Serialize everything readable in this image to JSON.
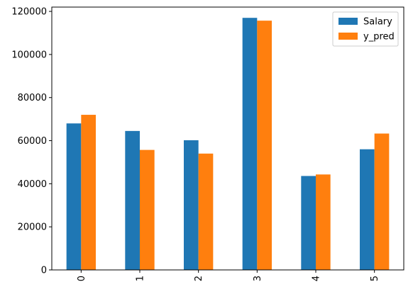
{
  "chart_data": {
    "type": "bar",
    "title": "",
    "xlabel": "",
    "ylabel": "",
    "categories": [
      "0",
      "1",
      "2",
      "3",
      "4",
      "5"
    ],
    "series": [
      {
        "name": "Salary",
        "color": "#1f77b4",
        "values": [
          68000,
          64500,
          60200,
          117000,
          43600,
          56000
        ]
      },
      {
        "name": "y_pred",
        "color": "#ff7f0e",
        "values": [
          72000,
          55700,
          54000,
          115700,
          44300,
          63300
        ]
      }
    ],
    "ylim": [
      0,
      122000
    ],
    "yticks": [
      {
        "value": 0,
        "label": "0"
      },
      {
        "value": 20000,
        "label": "20000"
      },
      {
        "value": 40000,
        "label": "40000"
      },
      {
        "value": 60000,
        "label": "60000"
      },
      {
        "value": 80000,
        "label": "80000"
      },
      {
        "value": 100000,
        "label": "100000"
      },
      {
        "value": 120000,
        "label": "120000"
      }
    ],
    "xtick_rotation": "vertical",
    "legend_position": "top-right",
    "grid": false
  }
}
